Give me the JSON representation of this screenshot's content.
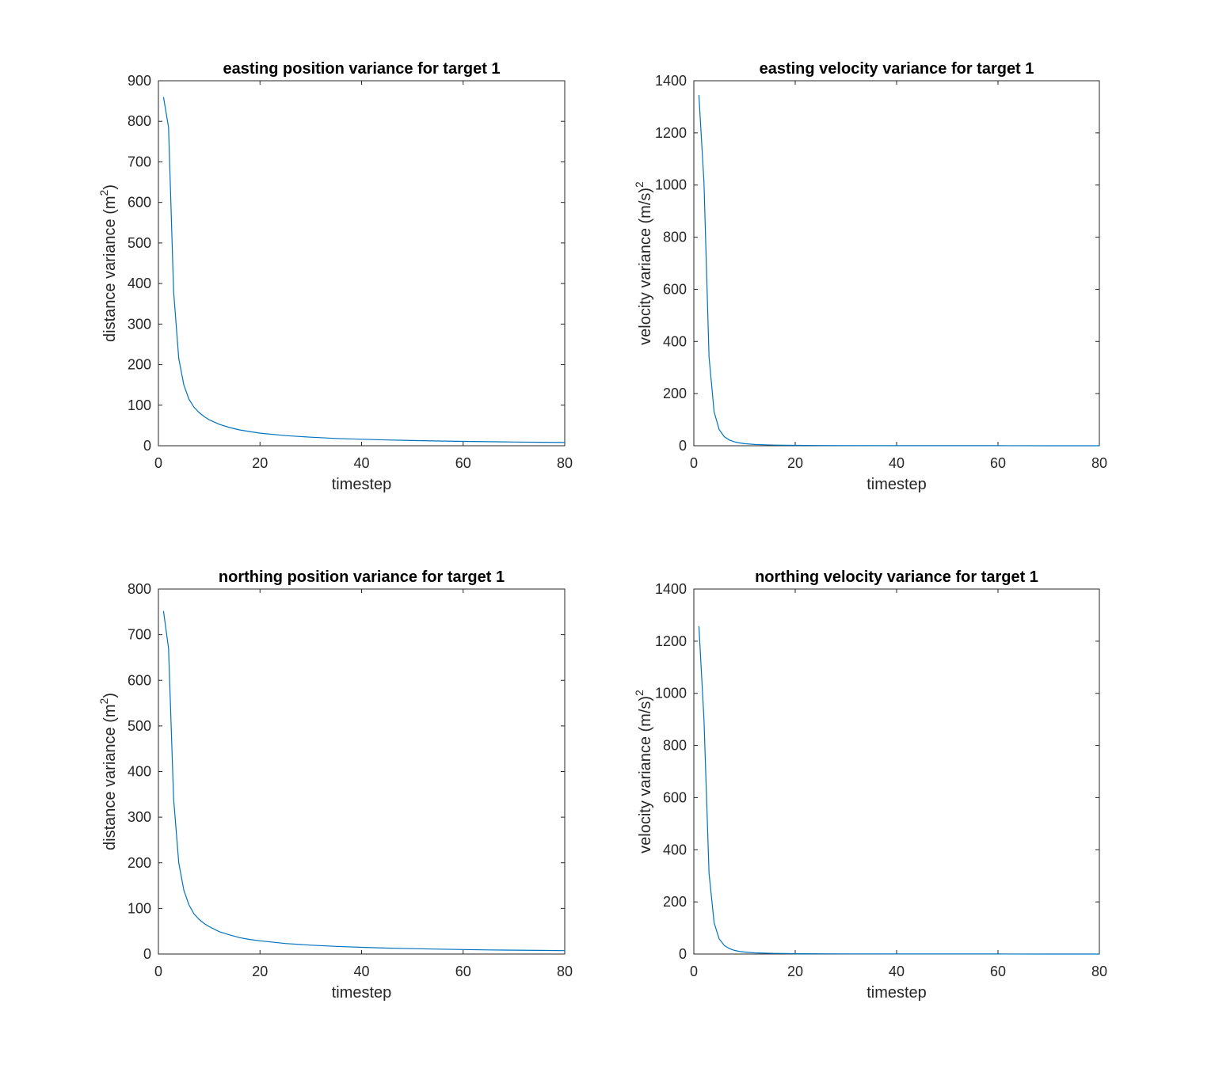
{
  "chart_data": [
    {
      "type": "line",
      "title": "easting position variance for target 1",
      "xlabel": "timestep",
      "ylabel": "distance variance (m",
      "ylabel_sup": "2",
      "ylabel_tail": ")",
      "xlim": [
        0,
        80
      ],
      "ylim": [
        0,
        900
      ],
      "xticks": [
        0,
        20,
        40,
        60,
        80
      ],
      "yticks": [
        0,
        100,
        200,
        300,
        400,
        500,
        600,
        700,
        800,
        900
      ],
      "grid": false,
      "series_color": "#0072bd",
      "series": [
        {
          "x": [
            1,
            2,
            3,
            4,
            5,
            6,
            7,
            8,
            9,
            10,
            12,
            14,
            16,
            18,
            20,
            25,
            30,
            35,
            40,
            45,
            50,
            55,
            60,
            65,
            70,
            75,
            80
          ],
          "y": [
            860,
            785,
            380,
            215,
            150,
            115,
            95,
            82,
            72,
            64,
            53,
            45,
            39,
            35,
            31,
            25,
            21,
            18,
            16,
            14.2,
            12.8,
            11.7,
            10.7,
            9.9,
            9.2,
            8.6,
            8
          ]
        }
      ]
    },
    {
      "type": "line",
      "title": "easting velocity variance for target 1",
      "xlabel": "timestep",
      "ylabel": "velocity variance (m/s)",
      "ylabel_sup": "2",
      "ylabel_tail": "",
      "xlim": [
        0,
        80
      ],
      "ylim": [
        0,
        1400
      ],
      "xticks": [
        0,
        20,
        40,
        60,
        80
      ],
      "yticks": [
        0,
        200,
        400,
        600,
        800,
        1000,
        1200,
        1400
      ],
      "grid": false,
      "series_color": "#0072bd",
      "series": [
        {
          "x": [
            1,
            2,
            3,
            4,
            5,
            6,
            7,
            8,
            9,
            10,
            12,
            14,
            16,
            18,
            20,
            25,
            30,
            40,
            50,
            60,
            70,
            80
          ],
          "y": [
            1345,
            1010,
            340,
            130,
            62,
            35,
            22,
            15,
            11,
            8,
            5,
            3.5,
            2.5,
            1.8,
            1.4,
            0.9,
            0.6,
            0.35,
            0.25,
            0.18,
            0.14,
            0.1
          ]
        }
      ]
    },
    {
      "type": "line",
      "title": "northing position variance for target 1",
      "xlabel": "timestep",
      "ylabel": "distance variance (m",
      "ylabel_sup": "2",
      "ylabel_tail": ")",
      "xlim": [
        0,
        80
      ],
      "ylim": [
        0,
        800
      ],
      "xticks": [
        0,
        20,
        40,
        60,
        80
      ],
      "yticks": [
        0,
        100,
        200,
        300,
        400,
        500,
        600,
        700,
        800
      ],
      "grid": false,
      "series_color": "#0072bd",
      "series": [
        {
          "x": [
            1,
            2,
            3,
            4,
            5,
            6,
            7,
            8,
            9,
            10,
            12,
            14,
            16,
            18,
            20,
            25,
            30,
            35,
            40,
            45,
            50,
            55,
            60,
            65,
            70,
            75,
            80
          ],
          "y": [
            752,
            670,
            340,
            200,
            140,
            108,
            88,
            76,
            67,
            60,
            49,
            42,
            36,
            32,
            29,
            23,
            19.5,
            16.8,
            14.7,
            13.1,
            11.8,
            10.8,
            9.9,
            9.1,
            8.5,
            7.9,
            7.4
          ]
        }
      ]
    },
    {
      "type": "line",
      "title": "northing velocity variance for target 1",
      "xlabel": "timestep",
      "ylabel": "velocity variance (m/s)",
      "ylabel_sup": "2",
      "ylabel_tail": "",
      "xlim": [
        0,
        80
      ],
      "ylim": [
        0,
        1400
      ],
      "xticks": [
        0,
        20,
        40,
        60,
        80
      ],
      "yticks": [
        0,
        200,
        400,
        600,
        800,
        1000,
        1200,
        1400
      ],
      "grid": false,
      "series_color": "#0072bd",
      "series": [
        {
          "x": [
            1,
            2,
            3,
            4,
            5,
            6,
            7,
            8,
            9,
            10,
            12,
            14,
            16,
            18,
            20,
            25,
            30,
            40,
            50,
            60,
            70,
            80
          ],
          "y": [
            1258,
            900,
            310,
            120,
            58,
            33,
            21,
            14,
            10,
            7.5,
            4.6,
            3.2,
            2.3,
            1.7,
            1.3,
            0.8,
            0.55,
            0.32,
            0.22,
            0.16,
            0.12,
            0.09
          ]
        }
      ]
    }
  ]
}
